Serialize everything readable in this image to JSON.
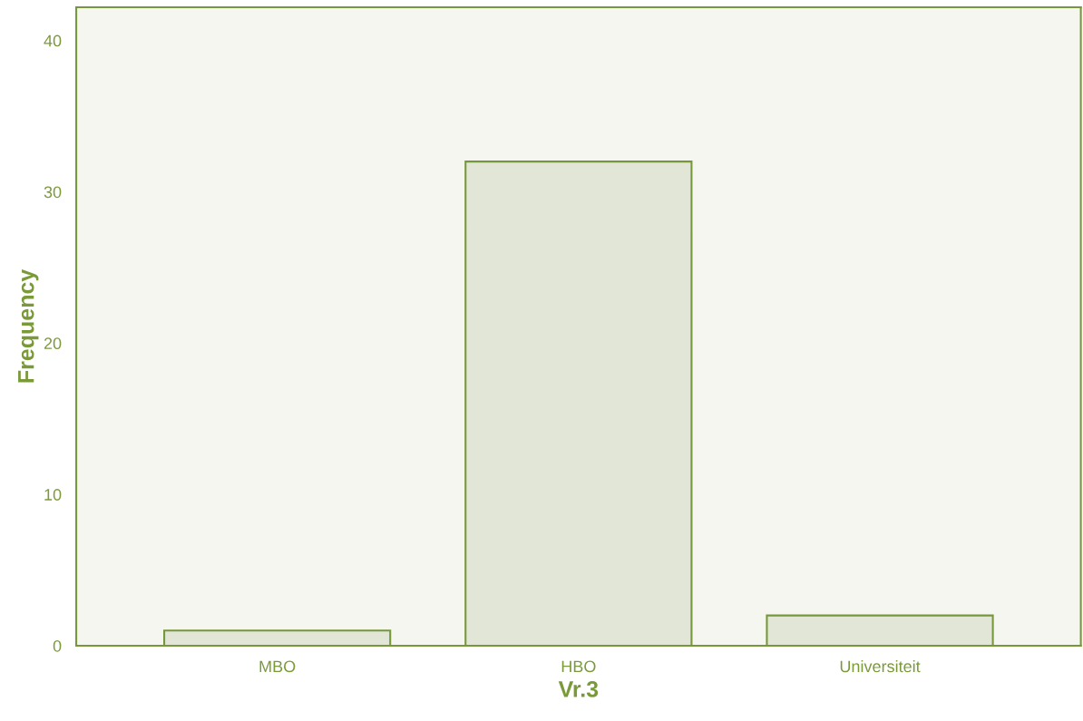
{
  "chart_data": {
    "type": "bar",
    "xlabel": "Vr.3",
    "ylabel": "Frequency",
    "categories": [
      "MBO",
      "HBO",
      "Universiteit"
    ],
    "values": [
      1,
      32,
      2
    ],
    "color": "#e1e6d6",
    "ylim": [
      0,
      42.2
    ],
    "yticks": [
      0,
      10,
      20,
      30,
      40
    ],
    "grid": false
  }
}
